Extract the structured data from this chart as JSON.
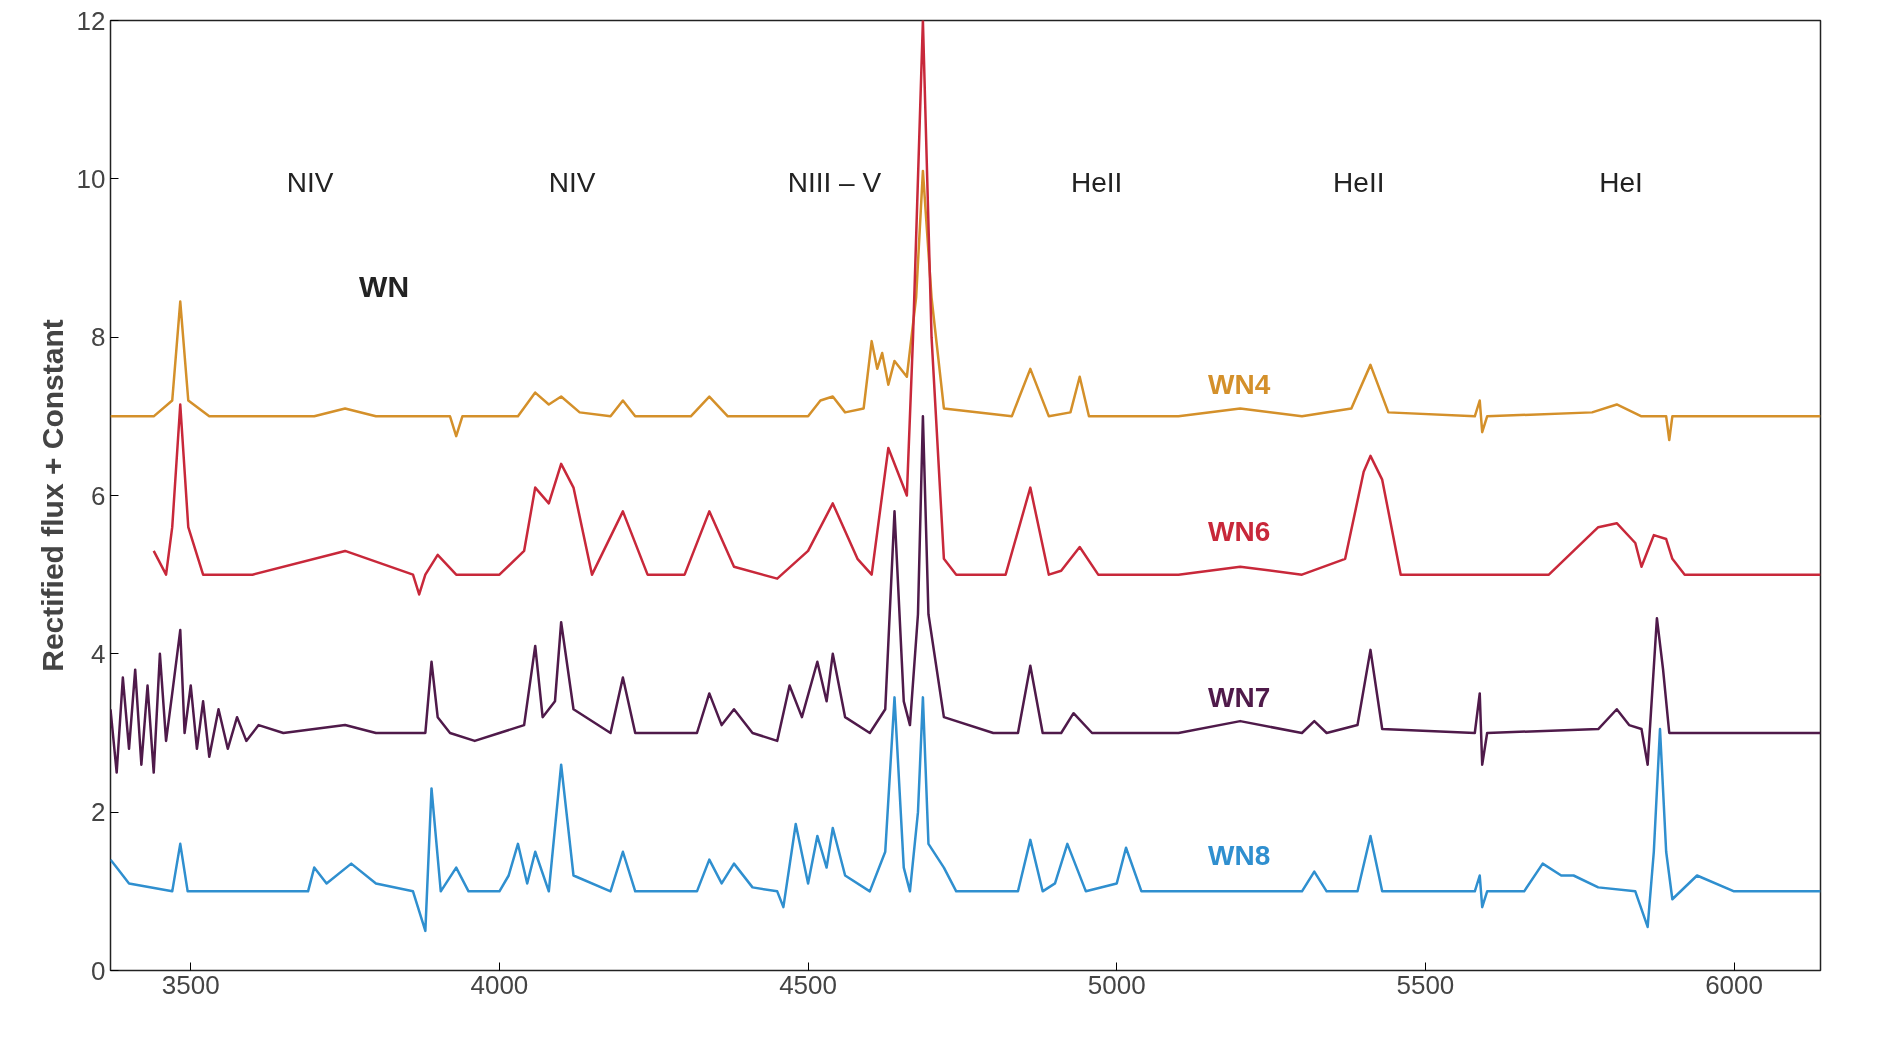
{
  "chart_data": {
    "type": "line",
    "ylabel": "Rectified flux + Constant",
    "xlim": [
      3370,
      6140
    ],
    "ylim": [
      0,
      12
    ],
    "xticks": [
      3500,
      4000,
      4500,
      5000,
      5500,
      6000
    ],
    "yticks": [
      0,
      2,
      4,
      6,
      8,
      10,
      12
    ],
    "grid": false,
    "line_style": "solid",
    "marker": "none",
    "annotations": [
      "NIV",
      "NIV",
      "NIII – V",
      "HeII",
      "HeII",
      "HeI",
      "WN"
    ],
    "series": [
      {
        "name": "WN4",
        "color": "#d4902a",
        "x": [
          3370,
          3440,
          3470,
          3483,
          3496,
          3530,
          3700,
          3750,
          3800,
          3920,
          3930,
          3940,
          4030,
          4058,
          4080,
          4100,
          4130,
          4180,
          4200,
          4220,
          4310,
          4340,
          4370,
          4500,
          4520,
          4540,
          4560,
          4590,
          4603,
          4612,
          4620,
          4630,
          4640,
          4660,
          4675,
          4686,
          4700,
          4720,
          4830,
          4860,
          4890,
          4925,
          4940,
          4955,
          5100,
          5200,
          5300,
          5380,
          5411,
          5440,
          5580,
          5588,
          5592,
          5600,
          5770,
          5810,
          5850,
          5890,
          5895,
          5900,
          6000,
          6140
        ],
        "values": [
          7.0,
          7.0,
          7.2,
          8.45,
          7.2,
          7.0,
          7.0,
          7.1,
          7.0,
          7.0,
          6.75,
          7.0,
          7.0,
          7.3,
          7.15,
          7.25,
          7.05,
          7.0,
          7.2,
          7.0,
          7.0,
          7.25,
          7.0,
          7.0,
          7.2,
          7.25,
          7.05,
          7.1,
          7.95,
          7.6,
          7.8,
          7.4,
          7.7,
          7.5,
          8.5,
          10.1,
          8.5,
          7.1,
          7.0,
          7.6,
          7.0,
          7.05,
          7.5,
          7.0,
          7.0,
          7.1,
          7.0,
          7.1,
          7.65,
          7.05,
          7.0,
          7.2,
          6.8,
          7.0,
          7.05,
          7.15,
          7.0,
          7.0,
          6.7,
          7.0,
          7.0,
          7.0
        ]
      },
      {
        "name": "WN6",
        "color": "#c8283a",
        "x": [
          3440,
          3460,
          3470,
          3483,
          3496,
          3520,
          3600,
          3750,
          3860,
          3870,
          3880,
          3900,
          3930,
          4000,
          4040,
          4058,
          4080,
          4100,
          4120,
          4150,
          4200,
          4240,
          4300,
          4340,
          4380,
          4450,
          4500,
          4540,
          4580,
          4603,
          4630,
          4660,
          4670,
          4686,
          4700,
          4720,
          4740,
          4820,
          4860,
          4890,
          4910,
          4940,
          4970,
          5100,
          5200,
          5300,
          5370,
          5400,
          5411,
          5430,
          5460,
          5700,
          5780,
          5810,
          5840,
          5850,
          5870,
          5890,
          5900,
          5920,
          6000,
          6140
        ],
        "values": [
          5.3,
          5.0,
          5.6,
          7.15,
          5.6,
          5.0,
          5.0,
          5.3,
          5.0,
          4.75,
          5.0,
          5.25,
          5.0,
          5.0,
          5.3,
          6.1,
          5.9,
          6.4,
          6.1,
          5.0,
          5.8,
          5.0,
          5.0,
          5.8,
          5.1,
          4.95,
          5.3,
          5.9,
          5.2,
          5.0,
          6.6,
          6.0,
          8.0,
          12.0,
          8.0,
          5.2,
          5.0,
          5.0,
          6.1,
          5.0,
          5.05,
          5.35,
          5.0,
          5.0,
          5.1,
          5.0,
          5.2,
          6.3,
          6.5,
          6.2,
          5.0,
          5.0,
          5.6,
          5.65,
          5.4,
          5.1,
          5.5,
          5.45,
          5.2,
          5.0,
          5.0,
          5.0
        ]
      },
      {
        "name": "WN7",
        "color": "#4f1a4a",
        "x": [
          3370,
          3380,
          3390,
          3400,
          3410,
          3420,
          3430,
          3440,
          3450,
          3460,
          3470,
          3483,
          3490,
          3500,
          3510,
          3520,
          3530,
          3545,
          3560,
          3575,
          3590,
          3610,
          3650,
          3750,
          3800,
          3880,
          3890,
          3900,
          3920,
          3960,
          4000,
          4040,
          4058,
          4070,
          4090,
          4100,
          4120,
          4180,
          4200,
          4220,
          4320,
          4340,
          4360,
          4380,
          4410,
          4450,
          4470,
          4490,
          4515,
          4530,
          4540,
          4560,
          4600,
          4625,
          4640,
          4655,
          4665,
          4678,
          4686,
          4695,
          4720,
          4800,
          4840,
          4860,
          4880,
          4910,
          4930,
          4960,
          5100,
          5200,
          5300,
          5320,
          5340,
          5390,
          5411,
          5430,
          5580,
          5588,
          5592,
          5600,
          5780,
          5810,
          5830,
          5850,
          5860,
          5875,
          5885,
          5895,
          6000,
          6140
        ],
        "values": [
          3.3,
          2.5,
          3.7,
          2.8,
          3.8,
          2.6,
          3.6,
          2.5,
          4.0,
          2.9,
          3.5,
          4.3,
          3.0,
          3.6,
          2.8,
          3.4,
          2.7,
          3.3,
          2.8,
          3.2,
          2.9,
          3.1,
          3.0,
          3.1,
          3.0,
          3.0,
          3.9,
          3.2,
          3.0,
          2.9,
          3.0,
          3.1,
          4.1,
          3.2,
          3.4,
          4.4,
          3.3,
          3.0,
          3.7,
          3.0,
          3.0,
          3.5,
          3.1,
          3.3,
          3.0,
          2.9,
          3.6,
          3.2,
          3.9,
          3.4,
          4.0,
          3.2,
          3.0,
          3.3,
          5.8,
          3.4,
          3.1,
          4.5,
          7.0,
          4.5,
          3.2,
          3.0,
          3.0,
          3.85,
          3.0,
          3.0,
          3.25,
          3.0,
          3.0,
          3.15,
          3.0,
          3.15,
          3.0,
          3.1,
          4.05,
          3.05,
          3.0,
          3.5,
          2.6,
          3.0,
          3.05,
          3.3,
          3.1,
          3.05,
          2.6,
          4.45,
          3.8,
          3.0,
          3.0,
          3.0
        ]
      },
      {
        "name": "WN8",
        "color": "#2f8fcf",
        "x": [
          3370,
          3380,
          3400,
          3470,
          3483,
          3495,
          3600,
          3690,
          3700,
          3720,
          3760,
          3800,
          3860,
          3880,
          3890,
          3905,
          3930,
          3950,
          4000,
          4015,
          4030,
          4045,
          4058,
          4080,
          4100,
          4120,
          4180,
          4200,
          4220,
          4320,
          4340,
          4360,
          4380,
          4410,
          4450,
          4460,
          4480,
          4500,
          4515,
          4530,
          4540,
          4560,
          4600,
          4625,
          4640,
          4655,
          4665,
          4678,
          4686,
          4695,
          4720,
          4740,
          4800,
          4840,
          4860,
          4880,
          4900,
          4920,
          4950,
          5000,
          5015,
          5040,
          5100,
          5300,
          5320,
          5340,
          5390,
          5411,
          5430,
          5580,
          5588,
          5592,
          5600,
          5660,
          5690,
          5720,
          5740,
          5780,
          5840,
          5860,
          5870,
          5880,
          5890,
          5900,
          5940,
          6000,
          6140
        ],
        "values": [
          1.4,
          1.3,
          1.1,
          1.0,
          1.6,
          1.0,
          1.0,
          1.0,
          1.3,
          1.1,
          1.35,
          1.1,
          1.0,
          0.5,
          2.3,
          1.0,
          1.3,
          1.0,
          1.0,
          1.2,
          1.6,
          1.1,
          1.5,
          1.0,
          2.6,
          1.2,
          1.0,
          1.5,
          1.0,
          1.0,
          1.4,
          1.1,
          1.35,
          1.05,
          1.0,
          0.8,
          1.85,
          1.1,
          1.7,
          1.3,
          1.8,
          1.2,
          1.0,
          1.5,
          3.45,
          1.3,
          1.0,
          2.0,
          3.45,
          1.6,
          1.3,
          1.0,
          1.0,
          1.0,
          1.65,
          1.0,
          1.1,
          1.6,
          1.0,
          1.1,
          1.55,
          1.0,
          1.0,
          1.0,
          1.25,
          1.0,
          1.0,
          1.7,
          1.0,
          1.0,
          1.2,
          0.8,
          1.0,
          1.0,
          1.35,
          1.2,
          1.2,
          1.05,
          1.0,
          0.55,
          1.5,
          3.05,
          1.5,
          0.9,
          1.2,
          1.0,
          1.0
        ]
      }
    ]
  }
}
